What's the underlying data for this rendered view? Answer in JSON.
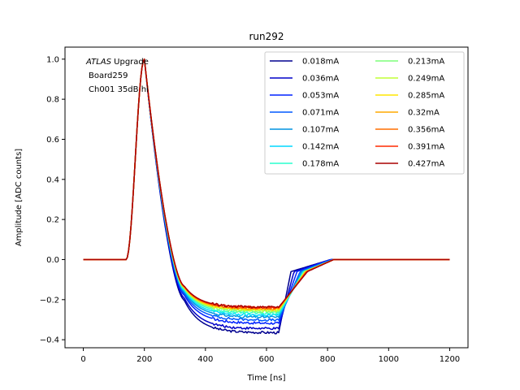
{
  "chart_data": {
    "type": "line",
    "title": "run292",
    "xlabel": "Time [ns]",
    "ylabel": "Amplitude [ADC counts]",
    "xlim": [
      -60,
      1260
    ],
    "ylim": [
      -0.44,
      1.06
    ],
    "xticks": [
      0,
      200,
      400,
      600,
      800,
      1000,
      1200
    ],
    "yticks": [
      -0.4,
      -0.2,
      0.0,
      0.2,
      0.4,
      0.6,
      0.8,
      1.0
    ],
    "xtick_labels": [
      "0",
      "200",
      "400",
      "600",
      "800",
      "1000",
      "1200"
    ],
    "ytick_labels": [
      "−0.4",
      "−0.2",
      "0.0",
      "0.2",
      "0.4",
      "0.6",
      "0.8",
      "1.0"
    ],
    "grid": false,
    "legend_position": "upper right",
    "legend_columns": 2,
    "annotation": {
      "line1_italic": "ATLAS",
      "line1_rest": " Upgrade",
      "line2": "Board259",
      "line3": "Ch001 35dB hi"
    },
    "series": [
      {
        "name": "0.018mA",
        "color": "#00008f",
        "floor": -0.365,
        "rise_end": 680,
        "settle": 810
      },
      {
        "name": "0.036mA",
        "color": "#0000c8",
        "floor": -0.345,
        "rise_end": 690,
        "settle": 810
      },
      {
        "name": "0.053mA",
        "color": "#0022ff",
        "floor": -0.318,
        "rise_end": 700,
        "settle": 810
      },
      {
        "name": "0.071mA",
        "color": "#0058ff",
        "floor": -0.302,
        "rise_end": 710,
        "settle": 815
      },
      {
        "name": "0.107mA",
        "color": "#0094e0",
        "floor": -0.288,
        "rise_end": 715,
        "settle": 820
      },
      {
        "name": "0.142mA",
        "color": "#00d8ff",
        "floor": -0.278,
        "rise_end": 720,
        "settle": 820
      },
      {
        "name": "0.178mA",
        "color": "#29ffce",
        "floor": -0.268,
        "rise_end": 722,
        "settle": 820
      },
      {
        "name": "0.213mA",
        "color": "#7dff7a",
        "floor": -0.26,
        "rise_end": 724,
        "settle": 820
      },
      {
        "name": "0.249mA",
        "color": "#c1ff36",
        "floor": -0.254,
        "rise_end": 726,
        "settle": 820
      },
      {
        "name": "0.285mA",
        "color": "#ffe600",
        "floor": -0.25,
        "rise_end": 728,
        "settle": 820
      },
      {
        "name": "0.32mA",
        "color": "#ffa800",
        "floor": -0.246,
        "rise_end": 730,
        "settle": 820
      },
      {
        "name": "0.356mA",
        "color": "#ff6f00",
        "floor": -0.243,
        "rise_end": 730,
        "settle": 820
      },
      {
        "name": "0.391mA",
        "color": "#ff2a00",
        "floor": -0.24,
        "rise_end": 732,
        "settle": 820
      },
      {
        "name": "0.427mA",
        "color": "#a90000",
        "floor": -0.238,
        "rise_end": 734,
        "settle": 820
      }
    ]
  }
}
